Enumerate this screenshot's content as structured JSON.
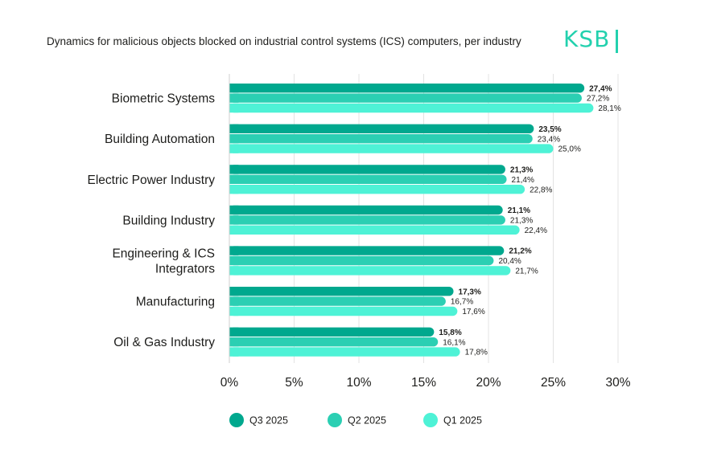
{
  "brand": {
    "logo_text": "KSB",
    "accent": "#23d1ae"
  },
  "chart_data": {
    "type": "bar",
    "orientation": "horizontal",
    "title": "Dynamics for malicious objects blocked on industrial control systems (ICS) computers, per industry",
    "categories": [
      [
        "Biometric Systems"
      ],
      [
        "Building Automation"
      ],
      [
        "Electric Power Industry"
      ],
      [
        "Building Industry"
      ],
      [
        "Engineering & ICS",
        "Integrators"
      ],
      [
        "Manufacturing"
      ],
      [
        "Oil & Gas Industry"
      ]
    ],
    "series": [
      {
        "name": "Q3 2025",
        "color": "#00a88e",
        "values": [
          27.4,
          23.5,
          21.3,
          21.1,
          21.2,
          17.3,
          15.8
        ],
        "labels": [
          "27,4%",
          "23,5%",
          "21,3%",
          "21,1%",
          "21,2%",
          "17,3%",
          "15,8%"
        ]
      },
      {
        "name": "Q2 2025",
        "color": "#2bcfb3",
        "values": [
          27.2,
          23.4,
          21.4,
          21.3,
          20.4,
          16.7,
          16.1
        ],
        "labels": [
          "27,2%",
          "23,4%",
          "21,4%",
          "21,3%",
          "20,4%",
          "16,7%",
          "16,1%"
        ]
      },
      {
        "name": "Q1 2025",
        "color": "#4ef2d6",
        "values": [
          28.1,
          25.0,
          22.8,
          22.4,
          21.7,
          17.6,
          17.8
        ],
        "labels": [
          "28,1%",
          "25,0%",
          "22,8%",
          "22,4%",
          "21,7%",
          "17,6%",
          "17,8%"
        ]
      }
    ],
    "xlim": [
      0,
      30
    ],
    "xticks": [
      0,
      5,
      10,
      15,
      20,
      25,
      30
    ],
    "xtick_labels": [
      "0%",
      "5%",
      "10%",
      "15%",
      "20%",
      "25%",
      "30%"
    ],
    "grid": true,
    "legend_position": "bottom"
  }
}
